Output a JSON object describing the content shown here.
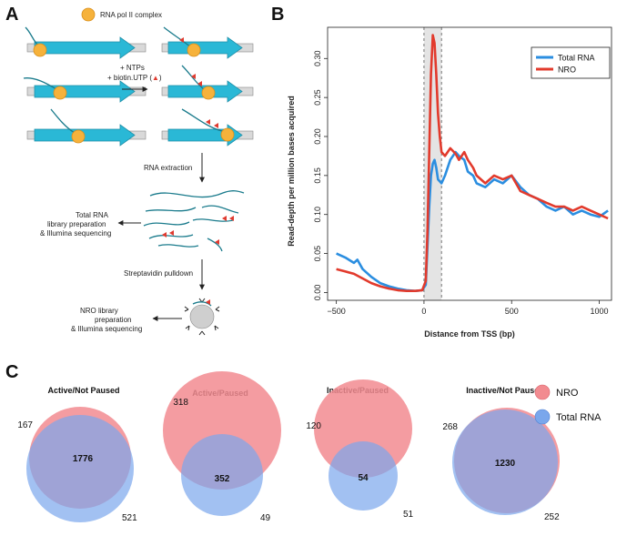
{
  "panels": {
    "a": "A",
    "b": "B",
    "c": "C"
  },
  "diagram": {
    "legend_label": "RNA pol II complex",
    "reagents_line1": "+ NTPs",
    "reagents_line2": "+ biotin.UTP (",
    "reagents_line2_end": ")",
    "step_rna_extraction": "RNA extraction",
    "total_rna_line1": "Total RNA",
    "total_rna_line2": "library preparation",
    "total_rna_line3": "& Illumina sequencing",
    "step_pulldown": "Streptavidin pulldown",
    "nro_line1": "NRO library",
    "nro_line2": "preparation",
    "nro_line3": "& Illumina sequencing",
    "colors": {
      "gene": "#2ab8d6",
      "pol": "#f6b23b",
      "rna": "#1a7b8c",
      "biotin": "#e03a2f"
    }
  },
  "chart_data": {
    "type": "line",
    "xlabel": "Distance from TSS (bp)",
    "ylabel": "Read-depth per million bases acquired",
    "xlim": [
      -550,
      1070
    ],
    "ylim": [
      -0.01,
      0.34
    ],
    "xticks": [
      -500,
      0,
      500,
      1000
    ],
    "xtick_labels": [
      "−500",
      "0",
      "500",
      "1000"
    ],
    "yticks": [
      0.0,
      0.05,
      0.1,
      0.15,
      0.2,
      0.25,
      0.3
    ],
    "ytick_labels": [
      "0.00",
      "0.05",
      "0.10",
      "0.15",
      "0.20",
      "0.25",
      "0.30"
    ],
    "shaded_region": [
      0,
      100
    ],
    "legend_position": "top-right",
    "series": [
      {
        "name": "Total RNA",
        "color": "#2b8ee0",
        "x": [
          -500,
          -450,
          -400,
          -380,
          -350,
          -300,
          -250,
          -200,
          -150,
          -100,
          -50,
          -10,
          10,
          20,
          30,
          40,
          50,
          60,
          70,
          80,
          100,
          120,
          150,
          180,
          200,
          230,
          250,
          280,
          300,
          350,
          400,
          450,
          500,
          550,
          600,
          650,
          700,
          750,
          800,
          850,
          900,
          950,
          1000,
          1050
        ],
        "y": [
          0.05,
          0.045,
          0.038,
          0.042,
          0.03,
          0.02,
          0.012,
          0.008,
          0.005,
          0.003,
          0.002,
          0.003,
          0.01,
          0.06,
          0.11,
          0.15,
          0.165,
          0.17,
          0.16,
          0.145,
          0.14,
          0.15,
          0.17,
          0.18,
          0.175,
          0.17,
          0.155,
          0.15,
          0.14,
          0.135,
          0.145,
          0.14,
          0.15,
          0.135,
          0.125,
          0.12,
          0.11,
          0.105,
          0.11,
          0.1,
          0.105,
          0.1,
          0.097,
          0.105
        ]
      },
      {
        "name": "NRO",
        "color": "#e23a2c",
        "x": [
          -500,
          -450,
          -400,
          -350,
          -300,
          -250,
          -200,
          -150,
          -100,
          -50,
          -10,
          10,
          20,
          30,
          40,
          50,
          60,
          70,
          80,
          90,
          100,
          120,
          150,
          180,
          200,
          230,
          250,
          280,
          300,
          350,
          400,
          450,
          500,
          550,
          600,
          650,
          700,
          750,
          800,
          850,
          900,
          950,
          1000,
          1050
        ],
        "y": [
          0.03,
          0.027,
          0.024,
          0.018,
          0.012,
          0.008,
          0.005,
          0.003,
          0.002,
          0.002,
          0.003,
          0.015,
          0.08,
          0.18,
          0.28,
          0.33,
          0.32,
          0.28,
          0.23,
          0.2,
          0.18,
          0.175,
          0.185,
          0.178,
          0.17,
          0.18,
          0.17,
          0.16,
          0.15,
          0.14,
          0.15,
          0.145,
          0.15,
          0.13,
          0.125,
          0.12,
          0.115,
          0.11,
          0.11,
          0.105,
          0.11,
          0.105,
          0.1,
          0.095
        ]
      }
    ]
  },
  "venn": {
    "legend_nro": "NRO",
    "legend_total": "Total RNA",
    "nro_color": "#f28b90",
    "total_color": "#7aa7ec",
    "groups": [
      {
        "title": "Active/Not Paused",
        "nro_only": "167",
        "shared": "1776",
        "total_only": "521"
      },
      {
        "title": "Active/Paused",
        "nro_only": "318",
        "shared": "352",
        "total_only": "49"
      },
      {
        "title": "Inactive/Paused",
        "nro_only": "120",
        "shared": "54",
        "total_only": "51"
      },
      {
        "title": "Inactive/Not Paused",
        "nro_only": "268",
        "shared": "1230",
        "total_only": "252"
      }
    ]
  }
}
